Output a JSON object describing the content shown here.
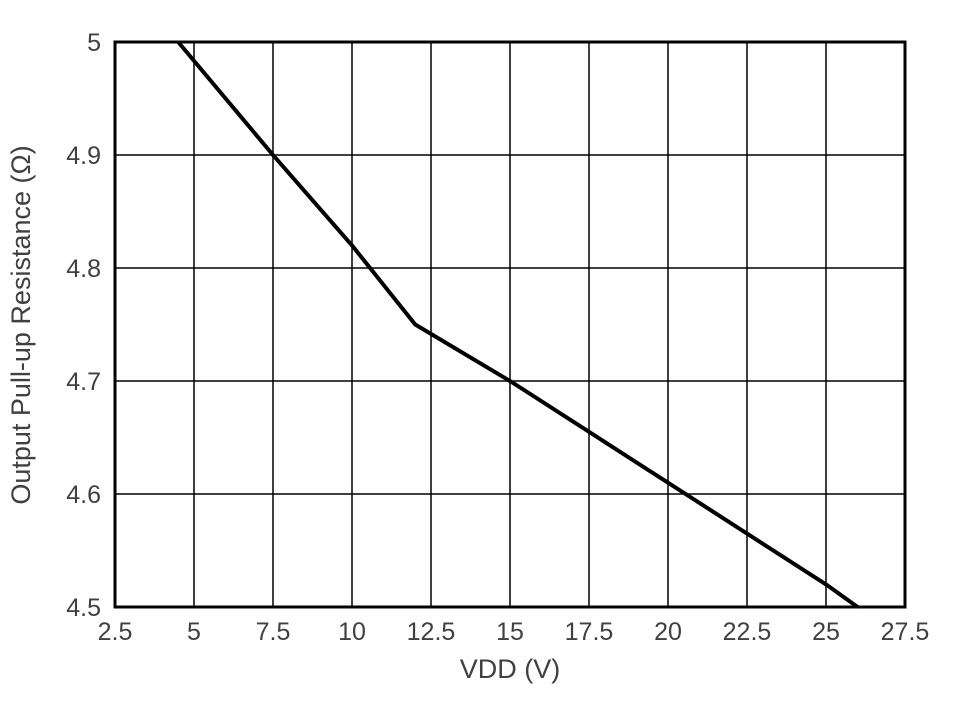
{
  "chart_data": {
    "type": "line",
    "title": "",
    "xlabel": "VDD (V)",
    "ylabel": "Output Pull-up Resistance (Ω)",
    "xlim": [
      2.5,
      27.5
    ],
    "ylim": [
      4.5,
      5
    ],
    "xticks": [
      2.5,
      5,
      7.5,
      10,
      12.5,
      15,
      17.5,
      20,
      22.5,
      25,
      27.5
    ],
    "xtick_labels": [
      "2.5",
      "5",
      "7.5",
      "10",
      "12.5",
      "15",
      "17.5",
      "20",
      "22.5",
      "25",
      "27.5"
    ],
    "yticks": [
      4.5,
      4.6,
      4.7,
      4.8,
      4.9,
      5
    ],
    "ytick_labels": [
      "4.5",
      "4.6",
      "4.7",
      "4.8",
      "4.9",
      "5"
    ],
    "grid": true,
    "legend": false,
    "series": [
      {
        "name": "Output Pull-up Resistance",
        "color": "#000000",
        "x": [
          4.5,
          7.5,
          10,
          12,
          15,
          17.5,
          20,
          22.5,
          25,
          26
        ],
        "y": [
          5.0,
          4.9,
          4.82,
          4.75,
          4.7,
          4.655,
          4.61,
          4.565,
          4.52,
          4.5
        ]
      }
    ],
    "style": {
      "grid_color": "#000000",
      "frame_color": "#000000",
      "tick_label_color": "#404040",
      "axis_label_color": "#404040",
      "background": "#ffffff"
    }
  }
}
